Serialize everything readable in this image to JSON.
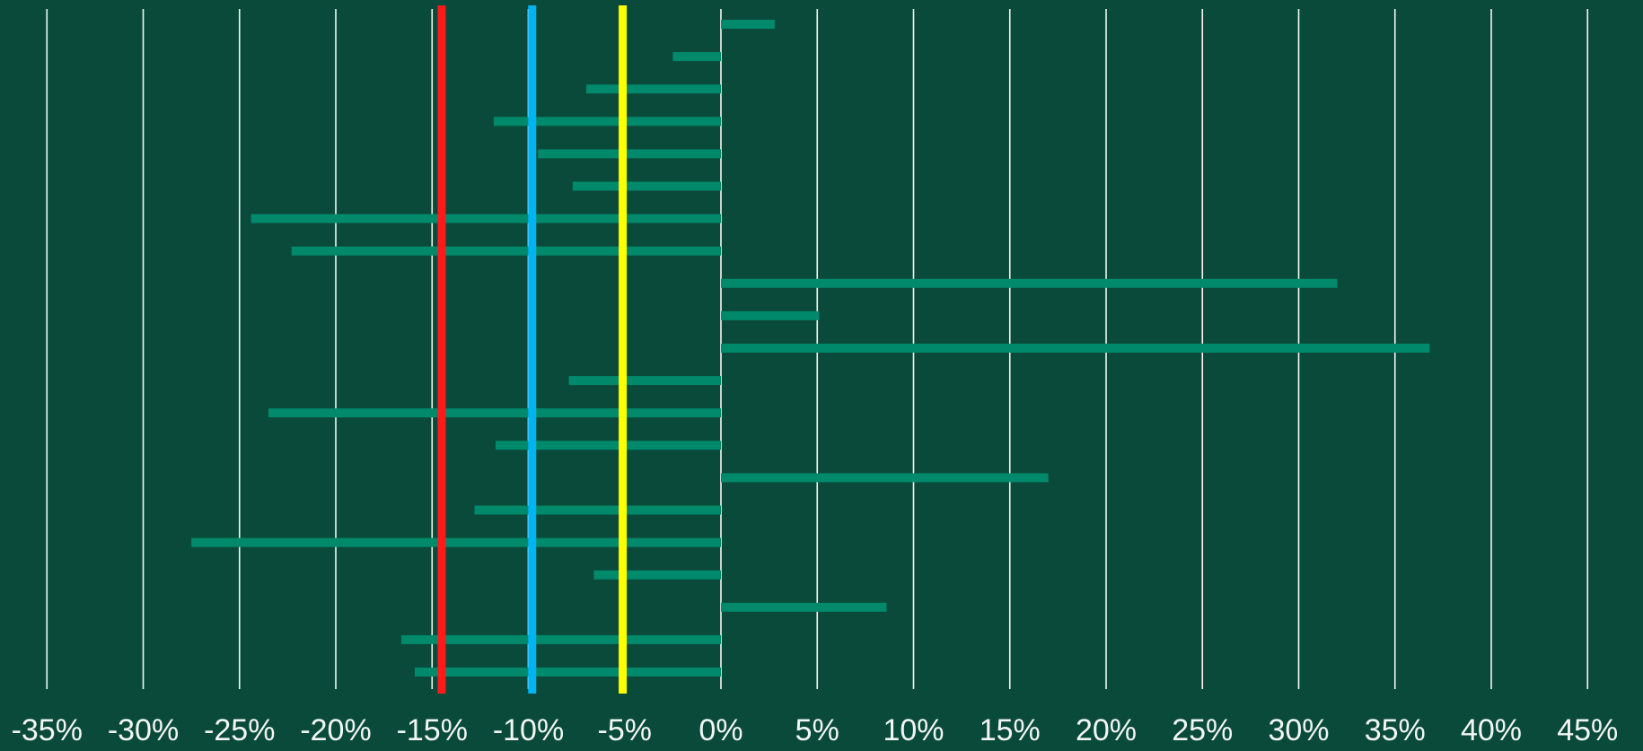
{
  "colors": {
    "background": "#0a4a3a",
    "gridline": "#f2f6f3",
    "bar": "#00896b",
    "ref_red": "#ff1a1a",
    "ref_blue": "#00b4f0",
    "ref_yellow": "#ffff00",
    "tick_text": "#f2f6f3"
  },
  "chart_data": {
    "type": "bar",
    "orientation": "horizontal",
    "title": "",
    "xlabel": "",
    "ylabel": "",
    "xlim": [
      -37,
      47
    ],
    "xticks": [
      -35,
      -30,
      -25,
      -20,
      -15,
      -10,
      -5,
      0,
      5,
      10,
      15,
      20,
      25,
      30,
      35,
      40,
      45
    ],
    "xtick_labels": [
      "-35%",
      "-30%",
      "-25%",
      "-20%",
      "-15%",
      "-10%",
      "-5%",
      "0%",
      "5%",
      "10%",
      "15%",
      "20%",
      "25%",
      "30%",
      "35%",
      "40%",
      "45%"
    ],
    "grid": "vertical",
    "legend": "none",
    "values": [
      2.8,
      -2.5,
      -7.0,
      -11.8,
      -9.5,
      -7.7,
      -24.4,
      -22.3,
      32.0,
      5.1,
      36.8,
      -7.9,
      -23.5,
      -11.7,
      17.0,
      -12.8,
      -27.5,
      -6.6,
      8.6,
      -16.6,
      -15.9
    ],
    "reference_lines": [
      {
        "value": -14.5,
        "color": "#ff1a1a"
      },
      {
        "value": -9.8,
        "color": "#00b4f0"
      },
      {
        "value": -5.1,
        "color": "#ffff00"
      }
    ]
  }
}
